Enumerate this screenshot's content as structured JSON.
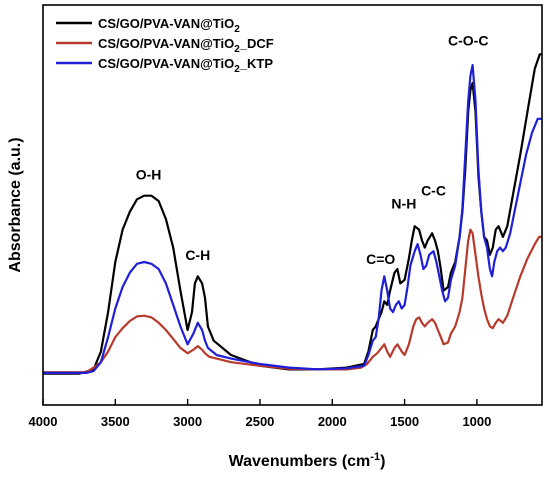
{
  "chart_data": {
    "type": "line",
    "xlabel": "Wavenumbers (cm",
    "xlabel_sup": "-1",
    "xlabel_tail": ")",
    "ylabel": "Absorbance (a.u.)",
    "xlim": [
      4000,
      550
    ],
    "x_reversed": true,
    "ylim": [
      0,
      100
    ],
    "x_ticks": [
      4000,
      3500,
      3000,
      2500,
      2000,
      1500,
      1000
    ],
    "y_ticks_labeled": false,
    "grid": false,
    "legend_position": "top-left",
    "series": [
      {
        "name_main": "CS/GO/PVA-VAN@TiO",
        "name_sub": "2",
        "name_tail": "",
        "color": "#000000",
        "points": [
          [
            4000,
            6.8
          ],
          [
            3750,
            6.8
          ],
          [
            3650,
            8
          ],
          [
            3600,
            13
          ],
          [
            3550,
            24
          ],
          [
            3500,
            38
          ],
          [
            3450,
            47
          ],
          [
            3400,
            52
          ],
          [
            3350,
            55.5
          ],
          [
            3300,
            56.5
          ],
          [
            3250,
            56.5
          ],
          [
            3200,
            55
          ],
          [
            3150,
            50
          ],
          [
            3100,
            42
          ],
          [
            3050,
            30
          ],
          [
            3000,
            19
          ],
          [
            2970,
            24
          ],
          [
            2950,
            32
          ],
          [
            2930,
            34
          ],
          [
            2900,
            32
          ],
          [
            2880,
            28
          ],
          [
            2860,
            20
          ],
          [
            2820,
            16
          ],
          [
            2700,
            12
          ],
          [
            2500,
            9
          ],
          [
            2300,
            8
          ],
          [
            2100,
            8
          ],
          [
            1900,
            8.5
          ],
          [
            1780,
            9.5
          ],
          [
            1750,
            13
          ],
          [
            1720,
            19
          ],
          [
            1700,
            20
          ],
          [
            1680,
            22
          ],
          [
            1660,
            24
          ],
          [
            1640,
            27
          ],
          [
            1620,
            26
          ],
          [
            1600,
            30
          ],
          [
            1570,
            35
          ],
          [
            1550,
            36
          ],
          [
            1530,
            32
          ],
          [
            1500,
            33
          ],
          [
            1470,
            39
          ],
          [
            1450,
            44
          ],
          [
            1430,
            48
          ],
          [
            1400,
            47
          ],
          [
            1380,
            44
          ],
          [
            1360,
            42
          ],
          [
            1340,
            44
          ],
          [
            1310,
            46
          ],
          [
            1290,
            44
          ],
          [
            1270,
            41
          ],
          [
            1250,
            36
          ],
          [
            1230,
            30
          ],
          [
            1200,
            31
          ],
          [
            1180,
            35
          ],
          [
            1150,
            38
          ],
          [
            1120,
            45
          ],
          [
            1100,
            52
          ],
          [
            1080,
            64
          ],
          [
            1060,
            80
          ],
          [
            1045,
            86
          ],
          [
            1030,
            88
          ],
          [
            1010,
            80
          ],
          [
            990,
            62
          ],
          [
            970,
            52
          ],
          [
            950,
            45
          ],
          [
            930,
            44
          ],
          [
            910,
            40
          ],
          [
            890,
            42
          ],
          [
            870,
            47
          ],
          [
            850,
            48
          ],
          [
            820,
            45
          ],
          [
            790,
            48
          ],
          [
            750,
            57
          ],
          [
            700,
            68
          ],
          [
            650,
            80
          ],
          [
            600,
            92
          ],
          [
            565,
            96
          ],
          [
            550,
            96
          ]
        ]
      },
      {
        "name_main": "CS/GO/PVA-VAN@TiO",
        "name_sub": "2",
        "name_tail": "_DCF",
        "color": "#b83a2c",
        "points": [
          [
            4000,
            7.2
          ],
          [
            3700,
            7.2
          ],
          [
            3650,
            8.5
          ],
          [
            3600,
            10
          ],
          [
            3550,
            13
          ],
          [
            3500,
            17
          ],
          [
            3450,
            19.5
          ],
          [
            3400,
            21.5
          ],
          [
            3350,
            22.8
          ],
          [
            3300,
            23
          ],
          [
            3250,
            22.5
          ],
          [
            3200,
            21
          ],
          [
            3150,
            19
          ],
          [
            3100,
            16.5
          ],
          [
            3050,
            14
          ],
          [
            3000,
            12.5
          ],
          [
            2960,
            13.5
          ],
          [
            2930,
            14.5
          ],
          [
            2900,
            13.5
          ],
          [
            2880,
            12.5
          ],
          [
            2850,
            11.5
          ],
          [
            2800,
            11
          ],
          [
            2700,
            10
          ],
          [
            2500,
            9
          ],
          [
            2300,
            8.2
          ],
          [
            2100,
            8
          ],
          [
            1900,
            8
          ],
          [
            1800,
            8.5
          ],
          [
            1760,
            9.5
          ],
          [
            1720,
            11.5
          ],
          [
            1690,
            12.5
          ],
          [
            1660,
            14
          ],
          [
            1640,
            15
          ],
          [
            1620,
            13
          ],
          [
            1600,
            11.5
          ],
          [
            1570,
            14
          ],
          [
            1550,
            15
          ],
          [
            1520,
            13
          ],
          [
            1500,
            12
          ],
          [
            1470,
            15
          ],
          [
            1440,
            20
          ],
          [
            1420,
            22
          ],
          [
            1400,
            22.5
          ],
          [
            1380,
            21
          ],
          [
            1360,
            20
          ],
          [
            1340,
            21
          ],
          [
            1310,
            22
          ],
          [
            1290,
            21
          ],
          [
            1270,
            19
          ],
          [
            1250,
            17
          ],
          [
            1230,
            15
          ],
          [
            1200,
            15.5
          ],
          [
            1180,
            18
          ],
          [
            1150,
            20
          ],
          [
            1120,
            24
          ],
          [
            1100,
            28
          ],
          [
            1080,
            36
          ],
          [
            1060,
            44
          ],
          [
            1045,
            47
          ],
          [
            1030,
            46
          ],
          [
            1010,
            40
          ],
          [
            990,
            34
          ],
          [
            970,
            29
          ],
          [
            950,
            25
          ],
          [
            930,
            22
          ],
          [
            910,
            20
          ],
          [
            890,
            19.5
          ],
          [
            870,
            21
          ],
          [
            850,
            22
          ],
          [
            820,
            21
          ],
          [
            790,
            23
          ],
          [
            750,
            28
          ],
          [
            700,
            34
          ],
          [
            650,
            39
          ],
          [
            600,
            43
          ],
          [
            570,
            45
          ],
          [
            550,
            45
          ]
        ]
      },
      {
        "name_main": "CS/GO/PVA-VAN@TiO",
        "name_sub": "2",
        "name_tail": "_KTP",
        "color": "#1f1fd8",
        "points": [
          [
            4000,
            7
          ],
          [
            3700,
            7
          ],
          [
            3650,
            7.5
          ],
          [
            3600,
            10
          ],
          [
            3550,
            17
          ],
          [
            3500,
            25
          ],
          [
            3450,
            31
          ],
          [
            3400,
            35
          ],
          [
            3350,
            37.5
          ],
          [
            3300,
            38
          ],
          [
            3250,
            37.5
          ],
          [
            3200,
            36
          ],
          [
            3150,
            32
          ],
          [
            3100,
            26
          ],
          [
            3050,
            20
          ],
          [
            3000,
            15
          ],
          [
            2960,
            18
          ],
          [
            2930,
            21
          ],
          [
            2900,
            19
          ],
          [
            2880,
            16
          ],
          [
            2860,
            14
          ],
          [
            2800,
            12
          ],
          [
            2700,
            11
          ],
          [
            2500,
            9.5
          ],
          [
            2300,
            8.5
          ],
          [
            2100,
            8
          ],
          [
            1900,
            8.3
          ],
          [
            1780,
            9
          ],
          [
            1750,
            12
          ],
          [
            1720,
            16
          ],
          [
            1700,
            17
          ],
          [
            1680,
            22
          ],
          [
            1660,
            30
          ],
          [
            1640,
            34
          ],
          [
            1620,
            30
          ],
          [
            1600,
            25
          ],
          [
            1580,
            24
          ],
          [
            1560,
            26
          ],
          [
            1540,
            27
          ],
          [
            1520,
            25
          ],
          [
            1500,
            26
          ],
          [
            1480,
            31
          ],
          [
            1460,
            37
          ],
          [
            1430,
            41
          ],
          [
            1410,
            43
          ],
          [
            1390,
            40
          ],
          [
            1370,
            36
          ],
          [
            1350,
            37
          ],
          [
            1330,
            40
          ],
          [
            1300,
            41
          ],
          [
            1280,
            38
          ],
          [
            1260,
            34
          ],
          [
            1240,
            30
          ],
          [
            1220,
            27
          ],
          [
            1200,
            28
          ],
          [
            1180,
            33
          ],
          [
            1150,
            37
          ],
          [
            1120,
            45
          ],
          [
            1100,
            53
          ],
          [
            1080,
            68
          ],
          [
            1060,
            83
          ],
          [
            1045,
            90
          ],
          [
            1030,
            93
          ],
          [
            1010,
            83
          ],
          [
            990,
            64
          ],
          [
            970,
            52
          ],
          [
            950,
            45
          ],
          [
            930,
            42
          ],
          [
            910,
            36
          ],
          [
            895,
            34
          ],
          [
            880,
            38
          ],
          [
            860,
            41
          ],
          [
            840,
            42
          ],
          [
            820,
            41
          ],
          [
            800,
            42
          ],
          [
            770,
            46
          ],
          [
            740,
            52
          ],
          [
            700,
            60
          ],
          [
            660,
            68
          ],
          [
            620,
            74
          ],
          [
            580,
            78
          ],
          [
            550,
            78
          ]
        ]
      }
    ],
    "annotations": [
      {
        "text": "O-H",
        "x": 3270,
        "y": 61
      },
      {
        "text": "C-H",
        "x": 2930,
        "y": 38.5
      },
      {
        "text": "C=O",
        "x": 1665,
        "y": 37.5
      },
      {
        "text": "N-H",
        "x": 1505,
        "y": 53
      },
      {
        "text": "C-C",
        "x": 1300,
        "y": 56.5
      },
      {
        "text": "C-O-C",
        "x": 1060,
        "y": 98.5
      }
    ]
  }
}
